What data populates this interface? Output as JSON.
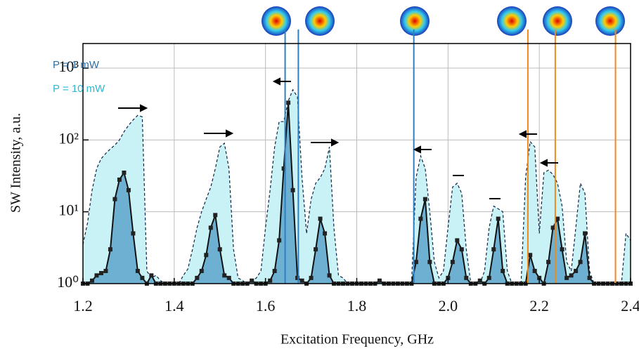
{
  "chart_data": {
    "type": "area",
    "log_y": true,
    "grid": true,
    "xlabel": "Excitation Frequency, GHz",
    "ylabel": "SW Intensity, a.u.",
    "xlim": [
      1.2,
      2.4
    ],
    "ylim": [
      1,
      2200
    ],
    "xticks": [
      1.2,
      1.4,
      1.6,
      1.8,
      {
        "value": 2,
        "label": "2.0"
      },
      2.2,
      2.4
    ],
    "yticks": [
      {
        "value": 1,
        "label": "10⁰"
      },
      {
        "value": 10,
        "label": "10¹"
      },
      {
        "value": 100,
        "label": "10²"
      },
      {
        "value": 1000,
        "label": "10³"
      }
    ],
    "x": [
      1.2,
      1.21,
      1.22,
      1.23,
      1.24,
      1.25,
      1.26,
      1.27,
      1.28,
      1.29,
      1.3,
      1.31,
      1.32,
      1.33,
      1.34,
      1.35,
      1.36,
      1.37,
      1.38,
      1.39,
      1.4,
      1.41,
      1.42,
      1.43,
      1.44,
      1.45,
      1.46,
      1.47,
      1.48,
      1.49,
      1.5,
      1.51,
      1.52,
      1.53,
      1.54,
      1.55,
      1.56,
      1.57,
      1.58,
      1.59,
      1.6,
      1.61,
      1.62,
      1.63,
      1.64,
      1.65,
      1.66,
      1.67,
      1.68,
      1.69,
      1.7,
      1.71,
      1.72,
      1.73,
      1.74,
      1.75,
      1.76,
      1.77,
      1.78,
      1.79,
      1.8,
      1.81,
      1.82,
      1.83,
      1.84,
      1.85,
      1.86,
      1.87,
      1.88,
      1.89,
      1.9,
      1.91,
      1.92,
      1.93,
      1.94,
      1.95,
      1.96,
      1.97,
      1.98,
      1.99,
      2.0,
      2.01,
      2.02,
      2.03,
      2.04,
      2.05,
      2.06,
      2.07,
      2.08,
      2.09,
      2.1,
      2.11,
      2.12,
      2.13,
      2.14,
      2.15,
      2.16,
      2.17,
      2.18,
      2.19,
      2.2,
      2.21,
      2.22,
      2.23,
      2.24,
      2.25,
      2.26,
      2.27,
      2.28,
      2.29,
      2.3,
      2.31,
      2.32,
      2.33,
      2.34,
      2.35,
      2.36,
      2.37,
      2.38,
      2.39,
      2.4
    ],
    "series": [
      {
        "name": "P = 10 mW",
        "color": "#2fb8d0",
        "fill": "#c8f2f5",
        "dashed": true,
        "markers": false,
        "values": [
          3.5,
          7,
          20,
          40,
          55,
          65,
          75,
          85,
          100,
          130,
          160,
          190,
          220,
          210,
          1.5,
          1.2,
          1.3,
          1.1,
          1,
          1,
          1,
          1,
          1.3,
          1.6,
          3,
          6,
          10,
          15,
          22,
          40,
          80,
          90,
          40,
          3,
          1.2,
          1.1,
          1,
          1.1,
          1.2,
          1.5,
          6,
          20,
          80,
          180,
          180,
          350,
          500,
          400,
          30,
          5,
          15,
          25,
          30,
          40,
          80,
          6,
          1.3,
          1.2,
          1,
          1,
          1,
          1,
          1,
          1,
          1,
          1,
          1,
          1,
          1,
          1,
          1,
          1,
          1,
          30,
          60,
          40,
          10,
          2,
          1.2,
          1.5,
          6,
          22,
          25,
          18,
          3,
          1,
          1,
          1,
          1.5,
          6,
          12,
          11,
          10,
          1.5,
          1,
          1,
          1,
          30,
          95,
          80,
          5,
          35,
          38,
          33,
          25,
          12,
          2,
          1.5,
          6,
          25,
          18,
          1.5,
          1,
          1,
          1,
          1,
          1,
          1,
          1,
          5,
          4
        ]
      },
      {
        "name": "P = 1 mW",
        "color": "#2b6fa8",
        "fill": "#6eb0d2",
        "dashed": false,
        "markers": true,
        "values": [
          1,
          1,
          1.1,
          1.3,
          1.4,
          1.5,
          3,
          15,
          28,
          35,
          20,
          5,
          1.5,
          1.2,
          1,
          1.3,
          1,
          1,
          1,
          1,
          1,
          1,
          1,
          1,
          1,
          1.2,
          1.5,
          2.5,
          6,
          9,
          3,
          1.3,
          1.2,
          1,
          1,
          1,
          1,
          1.1,
          1,
          1,
          1,
          1.1,
          1.5,
          4,
          40,
          330,
          20,
          1.2,
          1.1,
          1,
          1.2,
          3,
          8,
          5,
          1.3,
          1,
          1,
          1,
          1,
          1,
          1,
          1,
          1,
          1,
          1,
          1.1,
          1,
          1,
          1,
          1,
          1,
          1,
          1,
          2,
          8,
          15,
          2,
          1,
          1,
          1,
          1.2,
          2,
          4,
          3,
          1.2,
          1,
          1,
          1.1,
          1,
          1.2,
          3,
          8,
          1.5,
          1,
          1,
          1,
          1,
          1,
          2.5,
          1.5,
          1.2,
          1,
          2,
          6,
          8,
          3,
          1.2,
          1.3,
          1.5,
          2,
          5,
          1.2,
          1,
          1,
          1,
          1,
          1,
          1,
          1,
          1,
          1
        ]
      }
    ],
    "vlines": [
      {
        "x": 1.643,
        "color": "#2e7fc0"
      },
      {
        "x": 1.672,
        "color": "#2e7fc0"
      },
      {
        "x": 1.925,
        "color": "#2e7fc0"
      },
      {
        "x": 2.175,
        "color": "#f08a1a"
      },
      {
        "x": 2.235,
        "color": "#f08a1a"
      },
      {
        "x": 2.367,
        "color": "#f08a1a"
      }
    ]
  }
}
